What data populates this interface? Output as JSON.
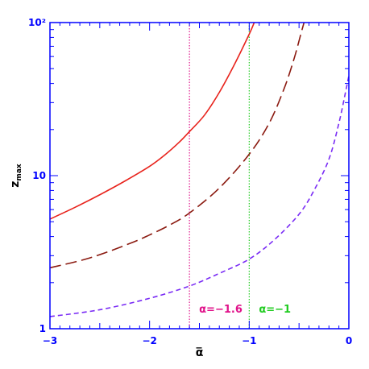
{
  "chart_data": {
    "type": "line",
    "xlabel": "α̅",
    "ylabel_main": "z",
    "ylabel_sub": "max",
    "xlim": [
      -3,
      0
    ],
    "ylim": [
      1,
      100
    ],
    "yscale": "log",
    "x_ticks": [
      -3,
      -2,
      -1,
      0
    ],
    "x_tick_labels": [
      "−3",
      "−2",
      "−1",
      "0"
    ],
    "y_ticks": [
      1,
      10,
      100
    ],
    "y_tick_labels": [
      "1",
      "10",
      "10²"
    ],
    "frame_color": "#0000ff",
    "series": [
      {
        "style": "solid",
        "color": "#e8231c",
        "x": [
          -3,
          -2.75,
          -2.5,
          -2.25,
          -2,
          -1.85,
          -1.7,
          -1.6,
          -1.45,
          -1.3,
          -1.15,
          -1.0,
          -0.95
        ],
        "y": [
          5.2,
          6.2,
          7.5,
          9.2,
          11.5,
          13.6,
          16.6,
          19.4,
          24.8,
          35,
          53,
          84,
          100
        ]
      },
      {
        "style": "long-dash",
        "color": "#8b1a10",
        "x": [
          -3,
          -2.6,
          -2.2,
          -2.0,
          -1.8,
          -1.6,
          -1.3,
          -1.0,
          -0.8,
          -0.65,
          -0.55,
          -0.48,
          -0.45
        ],
        "y": [
          2.5,
          2.9,
          3.6,
          4.1,
          4.75,
          5.7,
          8.3,
          13.8,
          22,
          37,
          58,
          85,
          100
        ]
      },
      {
        "style": "short-dash",
        "color": "#7a2cf5",
        "x": [
          -3,
          -2.5,
          -2.0,
          -1.6,
          -1.3,
          -1.0,
          -0.75,
          -0.5,
          -0.35,
          -0.2,
          -0.1,
          -0.03,
          0
        ],
        "y": [
          1.2,
          1.33,
          1.58,
          1.9,
          2.3,
          2.85,
          3.8,
          5.6,
          8.0,
          12.8,
          22,
          36,
          45
        ]
      }
    ],
    "vlines": [
      {
        "x": -1.6,
        "color": "#e0128a",
        "label": "α=−1.6"
      },
      {
        "x": -1.0,
        "color": "#22cc22",
        "label": "α=−1"
      }
    ]
  }
}
